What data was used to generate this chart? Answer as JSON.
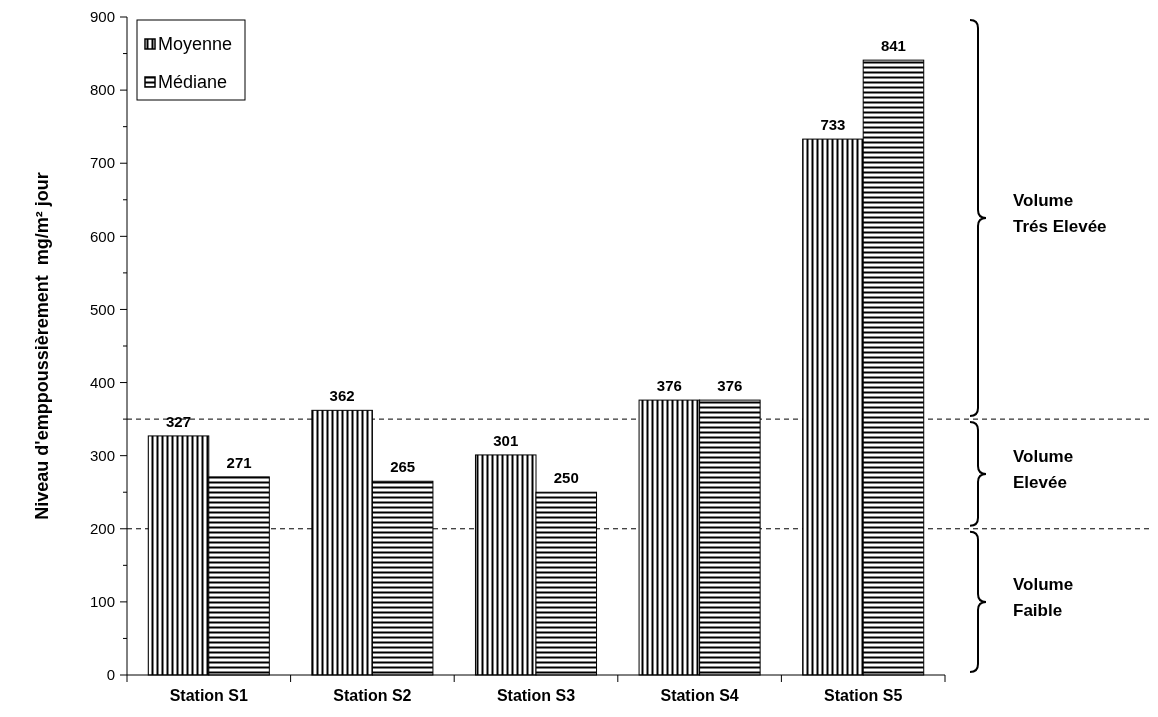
{
  "chart_data": {
    "type": "bar",
    "categories": [
      "Station S1",
      "Station S2",
      "Station S3",
      "Station S4",
      "Station S5"
    ],
    "series": [
      {
        "name": "Moyenne",
        "color": "#000000",
        "values": [
          327,
          362,
          301,
          376,
          733
        ]
      },
      {
        "name": "Médiane",
        "color": "#000000",
        "values": [
          271,
          265,
          250,
          376,
          841
        ]
      }
    ],
    "ylabel": "Niveau d'emppoussièrement  mg/m² jour",
    "ylim": [
      0,
      900
    ],
    "yticks": [
      0,
      {
        "value": 50,
        "label": null
      },
      100,
      {
        "value": 150,
        "label": null
      },
      200,
      {
        "value": 250,
        "label": null
      },
      300,
      {
        "value": 350,
        "label": null
      },
      400,
      {
        "value": 450,
        "label": null
      },
      500,
      {
        "value": 550,
        "label": null
      },
      600,
      {
        "value": 650,
        "label": null
      },
      700,
      {
        "value": 750,
        "label": null
      },
      800,
      {
        "value": 850,
        "label": null
      },
      900
    ],
    "data_labels": true,
    "legend": "top left",
    "grid": false,
    "ref_lines": [
      {
        "axis": "y",
        "value": 200,
        "line_style": "dashed"
      },
      {
        "axis": "y",
        "value": 350,
        "line_style": "dashed"
      }
    ],
    "annotations": [
      "Volume Trés Elevée",
      "Volume Elevée",
      "Volume Faible"
    ]
  }
}
